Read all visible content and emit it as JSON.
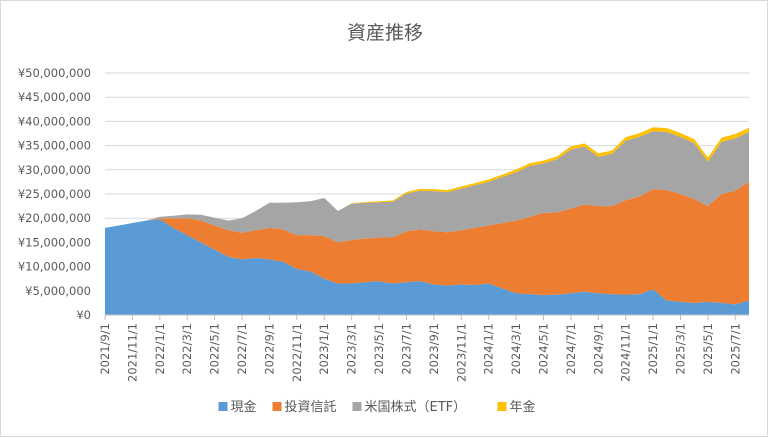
{
  "chart_data": {
    "type": "area",
    "stacked": true,
    "title": "資産推移",
    "xlabel": "",
    "ylabel": "",
    "ylim": [
      0,
      50000000
    ],
    "grid": true,
    "legend_position": "bottom",
    "y_ticks": [
      "¥0",
      "¥5,000,000",
      "¥10,000,000",
      "¥15,000,000",
      "¥20,000,000",
      "¥25,000,000",
      "¥30,000,000",
      "¥35,000,000",
      "¥40,000,000",
      "¥45,000,000",
      "¥50,000,000"
    ],
    "x_ticks": [
      "2021/9/1",
      "2021/11/1",
      "2022/1/1",
      "2022/3/1",
      "2022/5/1",
      "2022/7/1",
      "2022/9/1",
      "2022/11/1",
      "2023/1/1",
      "2023/3/1",
      "2023/5/1",
      "2023/7/1",
      "2023/9/1",
      "2023/11/1",
      "2024/1/1",
      "2024/3/1",
      "2024/5/1",
      "2024/7/1",
      "2024/9/1",
      "2024/11/1",
      "2025/1/1",
      "2025/3/1",
      "2025/5/1",
      "2025/7/1"
    ],
    "x": [
      "2021/9/1",
      "2021/10/1",
      "2021/11/1",
      "2021/12/1",
      "2022/1/1",
      "2022/2/1",
      "2022/3/1",
      "2022/4/1",
      "2022/5/1",
      "2022/6/1",
      "2022/7/1",
      "2022/8/1",
      "2022/9/1",
      "2022/10/1",
      "2022/11/1",
      "2022/12/1",
      "2023/1/1",
      "2023/2/1",
      "2023/3/1",
      "2023/4/1",
      "2023/5/1",
      "2023/6/1",
      "2023/7/1",
      "2023/8/1",
      "2023/9/1",
      "2023/10/1",
      "2023/11/1",
      "2023/12/1",
      "2024/1/1",
      "2024/2/1",
      "2024/3/1",
      "2024/4/1",
      "2024/5/1",
      "2024/6/1",
      "2024/7/1",
      "2024/8/1",
      "2024/9/1",
      "2024/10/1",
      "2024/11/1",
      "2024/12/1",
      "2025/1/1",
      "2025/2/1",
      "2025/3/1",
      "2025/4/1",
      "2025/5/1",
      "2025/6/1",
      "2025/7/1",
      "2025/8/1"
    ],
    "series": [
      {
        "name": "現金",
        "color": "#5b9bd5",
        "values": [
          18000000,
          18500000,
          19000000,
          19500000,
          19800000,
          18000000,
          16500000,
          15000000,
          13500000,
          12000000,
          11500000,
          11800000,
          11500000,
          11000000,
          9500000,
          9000000,
          7500000,
          6500000,
          6500000,
          6800000,
          7000000,
          6500000,
          6800000,
          7000000,
          6300000,
          6100000,
          6300000,
          6200000,
          6500000,
          5500000,
          4500000,
          4300000,
          4100000,
          4200000,
          4500000,
          4800000,
          4500000,
          4300000,
          4200000,
          4300000,
          5300000,
          3000000,
          2700000,
          2500000,
          2700000,
          2500000,
          2200000,
          3000000
        ]
      },
      {
        "name": "投資信託",
        "color": "#ed7d31",
        "values": [
          0,
          0,
          0,
          0,
          200000,
          2000000,
          3500000,
          4500000,
          5000000,
          5500000,
          5500000,
          5700000,
          6500000,
          6700000,
          7000000,
          7500000,
          8800000,
          8500000,
          9000000,
          9000000,
          9000000,
          9500000,
          10500000,
          10700000,
          11000000,
          11000000,
          11200000,
          11800000,
          12000000,
          13500000,
          15000000,
          16000000,
          17000000,
          17000000,
          17500000,
          18000000,
          18000000,
          18200000,
          19500000,
          20200000,
          20700000,
          22800000,
          22300000,
          21500000,
          19800000,
          22500000,
          23500000,
          24500000
        ]
      },
      {
        "name": "米国株式（ETF）",
        "color": "#a5a5a5",
        "values": [
          0,
          0,
          0,
          0,
          300000,
          500000,
          800000,
          1200000,
          1600000,
          2000000,
          3000000,
          4000000,
          5200000,
          5500000,
          6800000,
          7000000,
          7900000,
          6500000,
          7500000,
          7400000,
          7300000,
          7400000,
          7800000,
          8000000,
          8300000,
          8300000,
          8600000,
          8800000,
          9000000,
          9500000,
          10000000,
          10500000,
          10200000,
          11000000,
          12200000,
          12000000,
          10200000,
          10800000,
          12300000,
          12300000,
          12000000,
          12000000,
          11800000,
          11500000,
          9200000,
          10800000,
          10800000,
          10300000
        ]
      },
      {
        "name": "年金",
        "color": "#ffc000",
        "values": [
          0,
          0,
          0,
          0,
          0,
          0,
          0,
          0,
          0,
          0,
          0,
          0,
          0,
          0,
          0,
          0,
          0,
          0,
          100000,
          150000,
          200000,
          250000,
          300000,
          350000,
          400000,
          400000,
          450000,
          450000,
          500000,
          500000,
          550000,
          550000,
          600000,
          600000,
          650000,
          650000,
          700000,
          700000,
          750000,
          750000,
          800000,
          800000,
          800000,
          850000,
          850000,
          850000,
          900000,
          900000
        ]
      }
    ]
  }
}
